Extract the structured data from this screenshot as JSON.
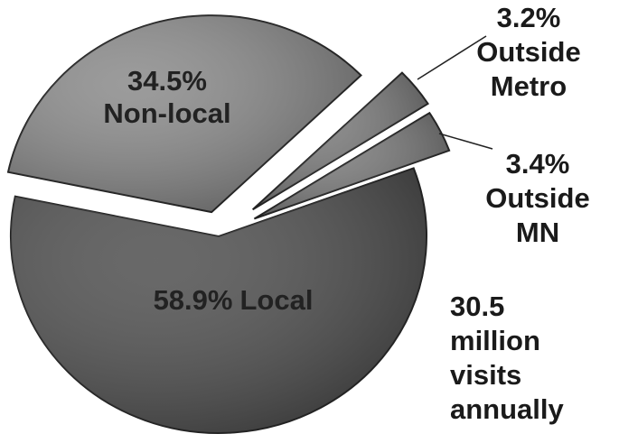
{
  "chart_data": {
    "type": "pie",
    "categories": [
      "Local",
      "Non-local",
      "Outside Metro",
      "Outside MN"
    ],
    "values": [
      58.9,
      34.5,
      3.2,
      3.4
    ],
    "value_labels": [
      "58.9%",
      "34.5%",
      "3.2%",
      "3.4%"
    ],
    "colors": [
      "#4e4e4e",
      "#8a8a8a",
      "#7a7a7a",
      "#7a7a7a"
    ],
    "annotation": "30.5 million visits annually"
  }
}
